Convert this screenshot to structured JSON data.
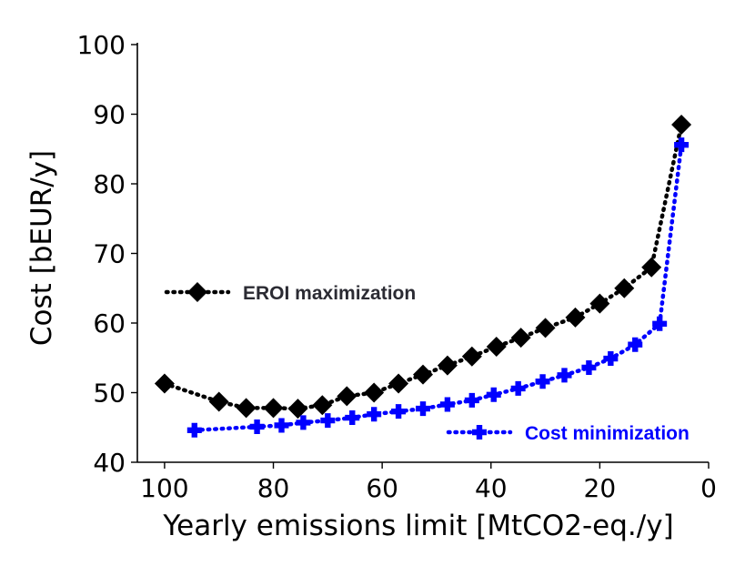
{
  "chart_data": {
    "type": "line",
    "xlabel": "Yearly emissions limit [MtCO2-eq./y]",
    "ylabel": "Cost [bEUR/y]",
    "xlim": [
      105,
      0
    ],
    "ylim": [
      40,
      100
    ],
    "x_reversed": true,
    "x_ticks": [
      100,
      80,
      60,
      40,
      20,
      0
    ],
    "y_ticks": [
      40,
      50,
      60,
      70,
      80,
      90,
      100
    ],
    "grid": false,
    "series": [
      {
        "name": "EROI maximization",
        "color": "#000000",
        "marker": "diamond",
        "linestyle": "dotted",
        "legend_position": "center-left",
        "x": [
          100,
          90,
          85,
          80,
          75.5,
          71,
          66.5,
          61.5,
          57,
          52.5,
          48,
          43.5,
          39,
          34.5,
          30,
          24.5,
          20,
          15.5,
          10.5,
          5
        ],
        "y": [
          51.3,
          48.7,
          47.8,
          47.8,
          47.7,
          48.2,
          49.5,
          50.0,
          51.3,
          52.6,
          53.9,
          55.2,
          56.6,
          57.9,
          59.3,
          60.8,
          62.8,
          65.0,
          68.0,
          88.5
        ]
      },
      {
        "name": "Cost minimization",
        "color": "#0000ff",
        "marker": "plus",
        "linestyle": "dotted",
        "legend_position": "bottom-right",
        "x": [
          94.5,
          83,
          78.5,
          74.5,
          70,
          65.5,
          61.5,
          57,
          52.5,
          48,
          43.5,
          39.5,
          35,
          30.5,
          26.5,
          22,
          18,
          13.5,
          9,
          5
        ],
        "y": [
          44.6,
          45.1,
          45.3,
          45.7,
          46.0,
          46.4,
          46.9,
          47.3,
          47.7,
          48.3,
          48.9,
          49.7,
          50.6,
          51.6,
          52.5,
          53.6,
          54.9,
          56.9,
          59.9,
          85.6
        ]
      }
    ]
  }
}
